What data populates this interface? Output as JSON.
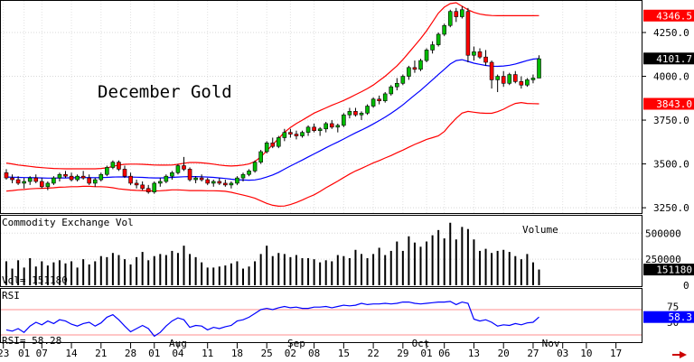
{
  "chart_data": {
    "type": "candlestick",
    "title": "December Gold",
    "price_panel": {
      "ylim": [
        3230,
        4420
      ],
      "y_ticks": [
        {
          "value": 4250,
          "label": "4250.0"
        },
        {
          "value": 4000,
          "label": "4000.0"
        },
        {
          "value": 3750,
          "label": "3750.0"
        },
        {
          "value": 3500,
          "label": "3500.0"
        },
        {
          "value": 3250,
          "label": "3250.0"
        }
      ],
      "tags": [
        {
          "value": 4346.5,
          "label": "4346.5",
          "color": "#ff0000",
          "text_color": "#ffffff"
        },
        {
          "value": 4101.7,
          "label": "4101.7",
          "color": "#000000",
          "text_color": "#ffffff"
        },
        {
          "value": 3843.0,
          "label": "3843.0",
          "color": "#ff0000",
          "text_color": "#ffffff"
        }
      ],
      "candles": [
        [
          3450,
          3470,
          3410,
          3420
        ],
        [
          3420,
          3440,
          3390,
          3410
        ],
        [
          3410,
          3430,
          3380,
          3390
        ],
        [
          3390,
          3420,
          3360,
          3400
        ],
        [
          3400,
          3430,
          3380,
          3420
        ],
        [
          3420,
          3440,
          3390,
          3400
        ],
        [
          3400,
          3420,
          3360,
          3370
        ],
        [
          3370,
          3400,
          3350,
          3390
        ],
        [
          3390,
          3430,
          3380,
          3420
        ],
        [
          3420,
          3450,
          3400,
          3440
        ],
        [
          3440,
          3460,
          3420,
          3430
        ],
        [
          3430,
          3450,
          3400,
          3410
        ],
        [
          3410,
          3440,
          3400,
          3430
        ],
        [
          3430,
          3460,
          3410,
          3420
        ],
        [
          3420,
          3440,
          3380,
          3390
        ],
        [
          3390,
          3420,
          3370,
          3410
        ],
        [
          3410,
          3450,
          3400,
          3440
        ],
        [
          3440,
          3490,
          3430,
          3480
        ],
        [
          3480,
          3520,
          3470,
          3510
        ],
        [
          3510,
          3520,
          3460,
          3470
        ],
        [
          3470,
          3490,
          3420,
          3430
        ],
        [
          3430,
          3450,
          3380,
          3390
        ],
        [
          3390,
          3410,
          3360,
          3380
        ],
        [
          3380,
          3400,
          3350,
          3360
        ],
        [
          3360,
          3380,
          3330,
          3340
        ],
        [
          3340,
          3400,
          3330,
          3390
        ],
        [
          3390,
          3420,
          3370,
          3400
        ],
        [
          3400,
          3440,
          3390,
          3430
        ],
        [
          3430,
          3460,
          3410,
          3450
        ],
        [
          3450,
          3500,
          3440,
          3490
        ],
        [
          3490,
          3540,
          3460,
          3470
        ],
        [
          3470,
          3480,
          3400,
          3410
        ],
        [
          3410,
          3430,
          3390,
          3420
        ],
        [
          3420,
          3440,
          3400,
          3410
        ],
        [
          3410,
          3420,
          3380,
          3390
        ],
        [
          3390,
          3410,
          3370,
          3400
        ],
        [
          3400,
          3420,
          3380,
          3390
        ],
        [
          3390,
          3410,
          3370,
          3380
        ],
        [
          3380,
          3400,
          3360,
          3390
        ],
        [
          3390,
          3430,
          3380,
          3420
        ],
        [
          3420,
          3450,
          3400,
          3440
        ],
        [
          3440,
          3470,
          3430,
          3460
        ],
        [
          3460,
          3520,
          3450,
          3510
        ],
        [
          3510,
          3580,
          3500,
          3570
        ],
        [
          3570,
          3630,
          3560,
          3620
        ],
        [
          3620,
          3650,
          3590,
          3600
        ],
        [
          3600,
          3660,
          3590,
          3650
        ],
        [
          3650,
          3700,
          3630,
          3680
        ],
        [
          3680,
          3700,
          3650,
          3670
        ],
        [
          3670,
          3690,
          3640,
          3660
        ],
        [
          3660,
          3690,
          3650,
          3680
        ],
        [
          3680,
          3720,
          3660,
          3710
        ],
        [
          3710,
          3730,
          3680,
          3690
        ],
        [
          3690,
          3710,
          3660,
          3700
        ],
        [
          3700,
          3740,
          3680,
          3730
        ],
        [
          3730,
          3750,
          3700,
          3710
        ],
        [
          3710,
          3730,
          3680,
          3720
        ],
        [
          3720,
          3790,
          3710,
          3780
        ],
        [
          3780,
          3820,
          3760,
          3800
        ],
        [
          3800,
          3820,
          3770,
          3780
        ],
        [
          3780,
          3800,
          3750,
          3790
        ],
        [
          3790,
          3840,
          3780,
          3830
        ],
        [
          3830,
          3880,
          3820,
          3870
        ],
        [
          3870,
          3890,
          3840,
          3860
        ],
        [
          3860,
          3910,
          3850,
          3900
        ],
        [
          3900,
          3950,
          3890,
          3940
        ],
        [
          3940,
          3990,
          3920,
          3960
        ],
        [
          3960,
          4010,
          3950,
          4000
        ],
        [
          4000,
          4060,
          3980,
          4050
        ],
        [
          4050,
          4090,
          4020,
          4040
        ],
        [
          4040,
          4100,
          4030,
          4090
        ],
        [
          4090,
          4160,
          4080,
          4150
        ],
        [
          4150,
          4200,
          4130,
          4180
        ],
        [
          4180,
          4250,
          4170,
          4240
        ],
        [
          4240,
          4300,
          4230,
          4290
        ],
        [
          4290,
          4380,
          4280,
          4370
        ],
        [
          4370,
          4390,
          4310,
          4340
        ],
        [
          4340,
          4400,
          4330,
          4380
        ],
        [
          4370,
          4390,
          4080,
          4120
        ],
        [
          4120,
          4170,
          4090,
          4140
        ],
        [
          4140,
          4160,
          4100,
          4110
        ],
        [
          4110,
          4150,
          4060,
          4080
        ],
        [
          4080,
          4090,
          3930,
          3980
        ],
        [
          3980,
          4010,
          3910,
          4000
        ],
        [
          4000,
          4030,
          3940,
          3960
        ],
        [
          3960,
          4020,
          3950,
          4010
        ],
        [
          4010,
          4030,
          3960,
          3970
        ],
        [
          3970,
          4000,
          3930,
          3950
        ],
        [
          3950,
          3990,
          3940,
          3980
        ],
        [
          3980,
          4010,
          3960,
          3990
        ],
        [
          3990,
          4120,
          3990,
          4100
        ]
      ],
      "sma": [
        3425,
        3424,
        3423,
        3422,
        3422,
        3421,
        3420,
        3419,
        3419,
        3420,
        3420,
        3421,
        3421,
        3422,
        3422,
        3421,
        3422,
        3423,
        3425,
        3426,
        3426,
        3425,
        3424,
        3423,
        3421,
        3420,
        3420,
        3421,
        3423,
        3425,
        3427,
        3428,
        3428,
        3427,
        3425,
        3423,
        3420,
        3417,
        3413,
        3410,
        3408,
        3407,
        3409,
        3415,
        3425,
        3437,
        3452,
        3470,
        3488,
        3505,
        3522,
        3540,
        3557,
        3574,
        3592,
        3609,
        3625,
        3642,
        3660,
        3677,
        3693,
        3710,
        3728,
        3747,
        3767,
        3789,
        3812,
        3837,
        3865,
        3893,
        3920,
        3950,
        3980,
        4010,
        4040,
        4070,
        4090,
        4095,
        4085,
        4075,
        4068,
        4062,
        4058,
        4057,
        4059,
        4063,
        4070,
        4080,
        4090,
        4098,
        4101.7
      ],
      "upper_band": [
        3505,
        3500,
        3494,
        3490,
        3486,
        3482,
        3479,
        3476,
        3474,
        3473,
        3472,
        3472,
        3472,
        3472,
        3472,
        3472,
        3474,
        3478,
        3486,
        3494,
        3498,
        3499,
        3499,
        3498,
        3496,
        3494,
        3493,
        3493,
        3494,
        3498,
        3504,
        3508,
        3508,
        3506,
        3503,
        3499,
        3494,
        3490,
        3488,
        3490,
        3494,
        3500,
        3514,
        3540,
        3575,
        3610,
        3645,
        3680,
        3708,
        3730,
        3750,
        3770,
        3790,
        3805,
        3820,
        3835,
        3848,
        3862,
        3878,
        3895,
        3912,
        3930,
        3950,
        3975,
        4000,
        4030,
        4060,
        4095,
        4135,
        4175,
        4215,
        4260,
        4310,
        4360,
        4395,
        4415,
        4420,
        4400,
        4380,
        4365,
        4355,
        4350,
        4347,
        4346,
        4346,
        4346,
        4346,
        4346,
        4346,
        4346,
        4346.5
      ],
      "lower_band": [
        3345,
        3348,
        3352,
        3354,
        3358,
        3360,
        3361,
        3362,
        3364,
        3367,
        3368,
        3370,
        3370,
        3372,
        3372,
        3370,
        3370,
        3368,
        3364,
        3358,
        3354,
        3351,
        3349,
        3348,
        3346,
        3346,
        3347,
        3349,
        3352,
        3352,
        3350,
        3348,
        3348,
        3348,
        3347,
        3347,
        3346,
        3344,
        3338,
        3330,
        3322,
        3314,
        3304,
        3290,
        3275,
        3264,
        3259,
        3260,
        3268,
        3280,
        3294,
        3310,
        3324,
        3343,
        3364,
        3383,
        3402,
        3422,
        3442,
        3460,
        3474,
        3490,
        3506,
        3519,
        3534,
        3548,
        3564,
        3579,
        3595,
        3611,
        3625,
        3640,
        3650,
        3660,
        3685,
        3725,
        3760,
        3790,
        3800,
        3795,
        3791,
        3789,
        3789,
        3798,
        3812,
        3830,
        3845,
        3850,
        3845,
        3844,
        3843.0
      ]
    },
    "volume_panel": {
      "label": "Commodity Exchange Vol",
      "series_label": "Volume",
      "ylim": [
        0,
        650000
      ],
      "y_ticks": [
        {
          "value": 500000,
          "label": "500000"
        },
        {
          "value": 250000,
          "label": "250000"
        },
        {
          "value": 0,
          "label": "0"
        }
      ],
      "readout": "Vol=   151180",
      "tag": {
        "value": 151180,
        "label": "151180",
        "color": "#000000",
        "text_color": "#ffffff"
      },
      "values": [
        230000,
        160000,
        240000,
        170000,
        260000,
        180000,
        230000,
        190000,
        220000,
        240000,
        210000,
        230000,
        170000,
        250000,
        200000,
        230000,
        280000,
        270000,
        310000,
        290000,
        250000,
        200000,
        270000,
        320000,
        240000,
        280000,
        300000,
        290000,
        330000,
        310000,
        380000,
        300000,
        270000,
        220000,
        170000,
        170000,
        180000,
        190000,
        210000,
        230000,
        160000,
        180000,
        230000,
        300000,
        380000,
        280000,
        310000,
        300000,
        270000,
        290000,
        260000,
        260000,
        250000,
        220000,
        240000,
        230000,
        290000,
        280000,
        260000,
        340000,
        300000,
        260000,
        300000,
        360000,
        290000,
        330000,
        420000,
        330000,
        470000,
        410000,
        370000,
        420000,
        480000,
        530000,
        450000,
        600000,
        440000,
        560000,
        540000,
        440000,
        330000,
        350000,
        310000,
        330000,
        340000,
        320000,
        280000,
        250000,
        300000,
        220000,
        151180
      ]
    },
    "rsi_panel": {
      "label": "RSI",
      "ylim": [
        20,
        100
      ],
      "y_ticks": [
        {
          "value": 75,
          "label": "75"
        },
        {
          "value": 50,
          "label": "50"
        }
      ],
      "reference_lines": [
        {
          "value": 70,
          "color": "#ff6a6a"
        },
        {
          "value": 30,
          "color": "#ff6a6a"
        }
      ],
      "readout": "RSI=   58.28",
      "tag": {
        "value": 58.3,
        "label": "58.3",
        "color": "#0000ff",
        "text_color": "#ffffff"
      },
      "values": [
        38,
        36,
        40,
        34,
        44,
        50,
        46,
        52,
        48,
        54,
        52,
        47,
        44,
        48,
        50,
        44,
        49,
        58,
        62,
        54,
        44,
        35,
        40,
        45,
        40,
        28,
        34,
        44,
        52,
        57,
        54,
        42,
        45,
        44,
        38,
        42,
        40,
        43,
        45,
        52,
        54,
        58,
        64,
        70,
        72,
        70,
        73,
        75,
        73,
        74,
        72,
        72,
        74,
        74,
        75,
        73,
        75,
        77,
        76,
        77,
        80,
        78,
        79,
        79,
        80,
        79,
        80,
        82,
        82,
        80,
        79,
        80,
        81,
        82,
        82,
        83,
        78,
        82,
        80,
        55,
        52,
        54,
        50,
        44,
        46,
        45,
        48,
        46,
        49,
        50,
        58.28
      ]
    },
    "x_axis": {
      "labels": [
        {
          "i": -0.5,
          "label": "23"
        },
        {
          "i": 3,
          "label": "01"
        },
        {
          "i": 6,
          "label": "07"
        },
        {
          "i": 11,
          "label": "14"
        },
        {
          "i": 16,
          "label": "21"
        },
        {
          "i": 21,
          "label": "28"
        },
        {
          "i": 25,
          "label": "01"
        },
        {
          "i": 29,
          "label": "04"
        },
        {
          "i": 34,
          "label": "11"
        },
        {
          "i": 39,
          "label": "18"
        },
        {
          "i": 44,
          "label": "25"
        },
        {
          "i": 48,
          "label": "02"
        },
        {
          "i": 52,
          "label": "08"
        },
        {
          "i": 57,
          "label": "15"
        },
        {
          "i": 62,
          "label": "22"
        },
        {
          "i": 67,
          "label": "29"
        },
        {
          "i": 71,
          "label": "01"
        },
        {
          "i": 74,
          "label": "06"
        },
        {
          "i": 79,
          "label": "13"
        },
        {
          "i": 84,
          "label": "20"
        },
        {
          "i": 89,
          "label": "27"
        },
        {
          "i": 94,
          "label": "03"
        },
        {
          "i": 98,
          "label": "10"
        },
        {
          "i": 103,
          "label": "17"
        }
      ],
      "months": [
        {
          "i": 29,
          "label": "Aug"
        },
        {
          "i": 49,
          "label": "Sep"
        },
        {
          "i": 70,
          "label": "Oct"
        },
        {
          "i": 92,
          "label": "Nov"
        }
      ]
    },
    "colors": {
      "up": "#00bb00",
      "down": "#ff0000",
      "sma": "#0000ff",
      "bands": "#ff0000",
      "volume": "#000000",
      "rsi": "#0000ff"
    }
  }
}
